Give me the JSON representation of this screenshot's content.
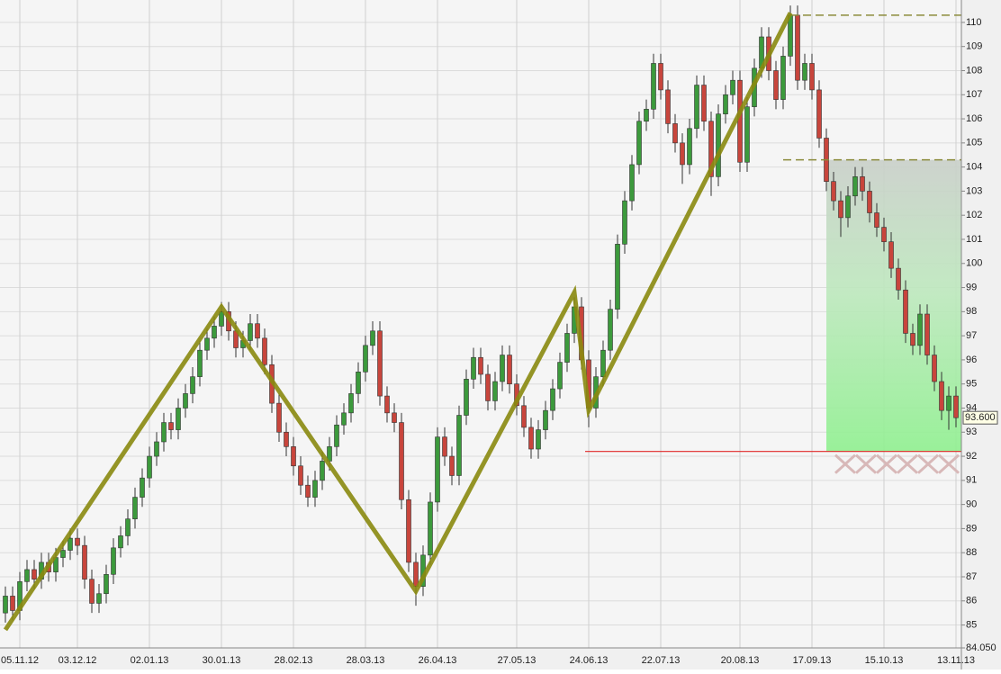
{
  "chart_data": {
    "type": "candlestick",
    "categories": [
      null,
      null,
      "05.11.12",
      null,
      null,
      null,
      null,
      null,
      null,
      null,
      "03.12.12",
      null,
      null,
      null,
      null,
      null,
      null,
      null,
      null,
      null,
      "02.01.13",
      null,
      null,
      null,
      null,
      null,
      null,
      null,
      null,
      null,
      "30.01.13",
      null,
      null,
      null,
      null,
      null,
      null,
      null,
      null,
      null,
      "28.02.13",
      null,
      null,
      null,
      null,
      null,
      null,
      null,
      null,
      null,
      "28.03.13",
      null,
      null,
      null,
      null,
      null,
      null,
      null,
      null,
      null,
      "26.04.13",
      null,
      null,
      null,
      null,
      null,
      null,
      null,
      null,
      null,
      null,
      "27.05.13",
      null,
      null,
      null,
      null,
      null,
      null,
      null,
      null,
      null,
      "24.06.13",
      null,
      null,
      null,
      null,
      null,
      null,
      null,
      null,
      null,
      "22.07.13",
      null,
      null,
      null,
      null,
      null,
      null,
      null,
      null,
      null,
      null,
      "20.08.13",
      null,
      null,
      null,
      null,
      null,
      null,
      null,
      null,
      null,
      "17.09.13",
      null,
      null,
      null,
      null,
      null,
      null,
      null,
      null,
      null,
      "15.10.13",
      null,
      null,
      null,
      null,
      null,
      null,
      null,
      null,
      null,
      "13.11.13"
    ],
    "open": [
      85.5,
      86.2,
      85.6,
      86.8,
      87.3,
      86.9,
      87.6,
      87.2,
      87.8,
      88.1,
      88.6,
      88.3,
      86.9,
      85.9,
      86.3,
      87.1,
      88.2,
      88.7,
      89.4,
      90.3,
      91.1,
      92.0,
      92.6,
      93.4,
      93.1,
      94.0,
      94.6,
      95.3,
      96.4,
      96.9,
      97.4,
      98.0,
      97.2,
      96.5,
      96.8,
      97.5,
      96.9,
      95.8,
      94.2,
      93.0,
      92.4,
      91.6,
      90.8,
      90.3,
      91.0,
      91.8,
      92.4,
      93.3,
      93.8,
      94.6,
      95.5,
      96.6,
      97.2,
      94.5,
      93.8,
      93.4,
      90.2,
      87.6,
      86.6,
      87.9,
      90.1,
      92.8,
      92.0,
      91.2,
      93.7,
      95.2,
      96.1,
      95.4,
      94.3,
      95.1,
      96.2,
      95.0,
      94.1,
      93.2,
      92.3,
      93.1,
      93.9,
      94.8,
      95.9,
      97.1,
      98.2,
      96.0,
      94.0,
      95.3,
      96.4,
      98.1,
      100.8,
      102.6,
      104.1,
      105.9,
      106.4,
      108.3,
      107.2,
      105.8,
      105.0,
      104.1,
      105.6,
      107.4,
      105.9,
      103.6,
      106.2,
      107.0,
      107.6,
      104.2,
      106.5,
      108.1,
      109.4,
      108.0,
      106.8,
      108.6,
      110.3,
      107.6,
      108.3,
      107.2,
      105.2,
      103.4,
      102.6,
      101.9,
      102.8,
      103.6,
      103.0,
      102.1,
      101.5,
      100.9,
      99.8,
      98.9,
      97.1,
      96.6,
      97.9,
      96.2,
      95.1,
      93.9,
      94.5
    ],
    "high": [
      86.6,
      86.6,
      87.2,
      87.7,
      87.7,
      88.0,
      88.0,
      88.2,
      88.5,
      89.0,
      89.0,
      88.7,
      87.3,
      86.7,
      87.5,
      88.6,
      89.1,
      89.8,
      90.7,
      91.5,
      92.4,
      93.0,
      93.8,
      93.8,
      94.4,
      95.0,
      95.7,
      96.8,
      97.3,
      97.8,
      98.4,
      98.4,
      97.6,
      97.2,
      97.9,
      97.9,
      97.3,
      96.2,
      94.6,
      93.4,
      92.8,
      92.0,
      91.2,
      91.4,
      92.2,
      92.8,
      93.7,
      94.2,
      95.0,
      95.9,
      97.0,
      97.6,
      97.6,
      94.9,
      94.2,
      93.8,
      90.6,
      88.0,
      88.3,
      90.5,
      93.2,
      93.2,
      92.4,
      94.1,
      95.6,
      96.5,
      96.5,
      95.8,
      95.5,
      96.6,
      96.6,
      95.4,
      94.5,
      93.6,
      93.5,
      94.3,
      95.2,
      96.3,
      97.5,
      98.6,
      98.6,
      96.4,
      95.7,
      96.8,
      98.5,
      101.2,
      103.0,
      104.5,
      106.3,
      106.8,
      108.7,
      108.7,
      107.6,
      106.2,
      105.4,
      106.0,
      107.8,
      107.8,
      106.3,
      106.6,
      107.4,
      108.0,
      108.0,
      106.9,
      108.5,
      109.8,
      109.8,
      108.4,
      109.0,
      110.7,
      110.7,
      108.7,
      108.7,
      107.6,
      105.6,
      103.8,
      103.0,
      103.2,
      104.0,
      104.0,
      103.4,
      102.5,
      101.9,
      101.3,
      100.2,
      99.3,
      97.5,
      98.3,
      98.3,
      96.6,
      95.5,
      94.9,
      94.9
    ],
    "low": [
      85.1,
      85.2,
      85.2,
      86.4,
      86.5,
      86.5,
      86.8,
      86.8,
      87.4,
      87.7,
      87.9,
      86.5,
      85.5,
      85.5,
      85.9,
      86.7,
      87.8,
      88.3,
      89.0,
      89.9,
      90.7,
      91.6,
      92.2,
      92.7,
      92.7,
      93.6,
      94.2,
      94.9,
      96.0,
      96.5,
      97.0,
      96.8,
      96.1,
      96.1,
      96.4,
      96.5,
      95.4,
      93.8,
      92.6,
      92.0,
      91.2,
      90.4,
      89.9,
      89.9,
      90.6,
      91.4,
      92.0,
      92.9,
      93.4,
      94.2,
      95.1,
      96.2,
      94.1,
      93.4,
      93.0,
      89.8,
      87.2,
      85.8,
      86.2,
      87.5,
      89.7,
      91.6,
      90.8,
      90.8,
      93.3,
      94.8,
      95.0,
      93.9,
      93.9,
      94.7,
      94.6,
      93.7,
      92.8,
      91.9,
      91.9,
      92.7,
      93.5,
      94.4,
      95.5,
      96.7,
      95.6,
      93.2,
      93.6,
      94.9,
      96.0,
      97.7,
      100.4,
      102.2,
      103.7,
      105.5,
      106.0,
      106.8,
      105.4,
      104.6,
      103.3,
      103.7,
      105.2,
      105.5,
      102.8,
      103.2,
      105.8,
      106.6,
      103.8,
      103.8,
      106.1,
      107.7,
      107.6,
      106.4,
      106.4,
      108.2,
      107.2,
      107.2,
      106.8,
      104.8,
      103.0,
      102.2,
      101.1,
      101.5,
      102.4,
      102.6,
      101.7,
      101.1,
      100.5,
      99.4,
      98.5,
      96.7,
      96.2,
      96.2,
      95.8,
      94.7,
      93.5,
      93.1,
      93.2
    ],
    "close": [
      86.2,
      85.6,
      86.8,
      87.3,
      86.9,
      87.6,
      87.2,
      87.8,
      88.1,
      88.6,
      88.3,
      86.9,
      85.9,
      86.3,
      87.1,
      88.2,
      88.7,
      89.4,
      90.3,
      91.1,
      92.0,
      92.6,
      93.4,
      93.1,
      94.0,
      94.6,
      95.3,
      96.4,
      96.9,
      97.4,
      98.0,
      97.2,
      96.5,
      96.8,
      97.5,
      96.9,
      95.8,
      94.2,
      93.0,
      92.4,
      91.6,
      90.8,
      90.3,
      91.0,
      91.8,
      92.4,
      93.3,
      93.8,
      94.6,
      95.5,
      96.6,
      97.2,
      94.5,
      93.8,
      93.4,
      90.2,
      87.6,
      86.6,
      87.9,
      90.1,
      92.8,
      92.0,
      91.2,
      93.7,
      95.2,
      96.1,
      95.4,
      94.3,
      95.1,
      96.2,
      95.0,
      94.1,
      93.2,
      92.3,
      93.1,
      93.9,
      94.8,
      95.9,
      97.1,
      98.2,
      96.0,
      94.0,
      95.3,
      96.4,
      98.1,
      100.8,
      102.6,
      104.1,
      105.9,
      106.4,
      108.3,
      107.2,
      105.8,
      105.0,
      104.1,
      105.6,
      107.4,
      105.9,
      103.6,
      106.2,
      107.0,
      107.6,
      104.2,
      106.5,
      108.1,
      109.4,
      108.0,
      106.8,
      108.6,
      110.3,
      107.6,
      108.3,
      107.2,
      105.2,
      103.4,
      102.6,
      101.9,
      102.8,
      103.6,
      103.0,
      102.1,
      101.5,
      100.9,
      99.8,
      98.9,
      97.1,
      96.6,
      97.9,
      96.2,
      95.1,
      93.9,
      94.5,
      93.6
    ],
    "up_color": "#3c9a3c",
    "down_color": "#c8453c",
    "zigzag": {
      "x": [
        0,
        30,
        57,
        79,
        81,
        109
      ],
      "values": [
        84.8,
        98.2,
        86.4,
        98.8,
        93.9,
        110.4
      ],
      "color": "#8a8a10"
    },
    "levels": [
      {
        "value": 110.3,
        "from": 109,
        "color": "#8a8a3a",
        "style": "dashed"
      },
      {
        "value": 104.3,
        "from": 108,
        "color": "#8a8a3a",
        "style": "dashed"
      },
      {
        "value": 92.2,
        "from": 80.5,
        "color": "#e02828",
        "style": "solid"
      }
    ],
    "zone": {
      "from": 114,
      "top": 104.3,
      "bottom": 92.2
    },
    "last_price": {
      "value": 93.6,
      "label": "93.600"
    },
    "ylim": [
      84.05,
      110.93
    ],
    "yticks": [
      {
        "value": 84.05,
        "label": "84.050"
      },
      85,
      86,
      87,
      88,
      89,
      90,
      91,
      92,
      93,
      94,
      95,
      96,
      97,
      98,
      99,
      100,
      101,
      102,
      103,
      104,
      105,
      106,
      107,
      108,
      109,
      110
    ],
    "grid": true
  }
}
